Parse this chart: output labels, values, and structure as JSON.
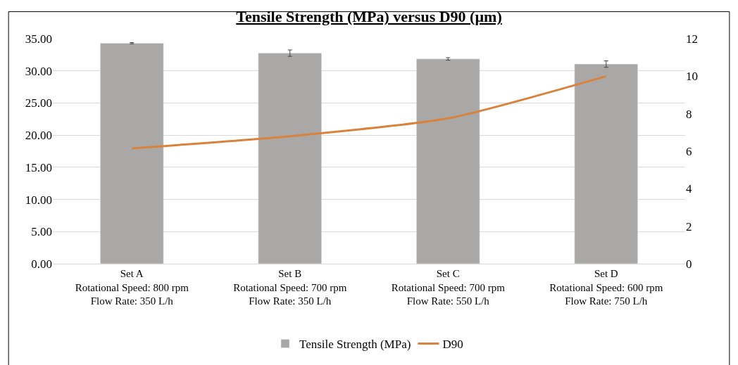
{
  "chart_data": {
    "type": "bar",
    "title": "Tensile Strength (MPa) versus D90 (µm)",
    "categories": [
      "Set A\nRotational Speed: 800 rpm\nFlow Rate: 350 L/h",
      "Set B\nRotational Speed: 700 rpm\nFlow Rate: 350 L/h",
      "Set C\nRotational Speed: 700 rpm\nFlow Rate: 550 L/h",
      "Set D\nRotational Speed: 600 rpm\nFlow Rate: 750 L/h"
    ],
    "series": [
      {
        "name": "Tensile Strength (MPa)",
        "color": "#a9a8a6",
        "values": [
          34.3,
          32.75,
          31.85,
          31.05
        ],
        "errors": [
          0.1,
          0.5,
          0.2,
          0.5
        ]
      },
      {
        "name": "D90",
        "type": "line",
        "axis": "y2",
        "color": "#d9823b",
        "values": [
          6.15,
          6.8,
          7.75,
          10.0
        ],
        "marker": "none"
      }
    ],
    "ylim": [
      0,
      35
    ],
    "yticks": [
      {
        "value": 0,
        "label": "0.00"
      },
      {
        "value": 5,
        "label": "5.00"
      },
      {
        "value": 10,
        "label": "10.00"
      },
      {
        "value": 15,
        "label": "15.00"
      },
      {
        "value": 20,
        "label": "20.00"
      },
      {
        "value": 25,
        "label": "25.00"
      },
      {
        "value": 30,
        "label": "30.00"
      },
      {
        "value": 35,
        "label": "35.00"
      }
    ],
    "y2lim": [
      0,
      12
    ],
    "y2ticks": [
      0,
      2,
      4,
      6,
      8,
      10,
      12
    ],
    "grid": "y",
    "legend": "bottom"
  }
}
